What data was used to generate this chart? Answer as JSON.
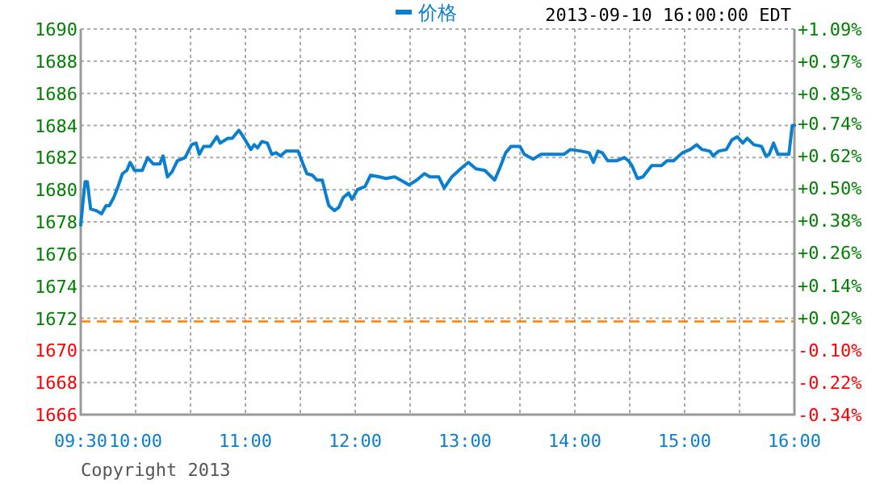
{
  "chart_data": {
    "type": "line",
    "subtitle": "2013-09-10 16:00:00 EDT",
    "annotations": [
      "Copyright 2013"
    ],
    "x": [
      9.5,
      9.52,
      9.54,
      9.56,
      9.59,
      9.64,
      9.69,
      9.73,
      9.76,
      9.8,
      9.84,
      9.88,
      9.92,
      9.95,
      9.99,
      10.06,
      10.11,
      10.16,
      10.22,
      10.25,
      10.29,
      10.33,
      10.38,
      10.45,
      10.51,
      10.55,
      10.58,
      10.62,
      10.68,
      10.74,
      10.77,
      10.84,
      10.88,
      10.94,
      10.98,
      11.05,
      11.08,
      11.11,
      11.15,
      11.2,
      11.24,
      11.28,
      11.32,
      11.37,
      11.43,
      11.48,
      11.53,
      11.56,
      11.61,
      11.65,
      11.7,
      11.74,
      11.76,
      11.81,
      11.85,
      11.89,
      11.94,
      11.97,
      12.02,
      12.09,
      12.14,
      12.22,
      12.28,
      12.36,
      12.44,
      12.49,
      12.56,
      12.63,
      12.68,
      12.76,
      12.81,
      12.88,
      12.96,
      13.03,
      13.1,
      13.18,
      13.27,
      13.32,
      13.37,
      13.42,
      13.5,
      13.54,
      13.62,
      13.69,
      13.76,
      13.84,
      13.9,
      13.96,
      14.06,
      14.13,
      14.17,
      14.21,
      14.25,
      14.3,
      14.38,
      14.45,
      14.49,
      14.52,
      14.57,
      14.62,
      14.7,
      14.79,
      14.84,
      14.9,
      14.98,
      15.05,
      15.11,
      15.16,
      15.23,
      15.26,
      15.31,
      15.38,
      15.43,
      15.48,
      15.53,
      15.57,
      15.63,
      15.7,
      15.74,
      15.77,
      15.81,
      15.85,
      15.95,
      15.98,
      16.0
    ],
    "series": [
      {
        "name": "价格",
        "color": "#0a7fd0",
        "values": [
          1677.8,
          1679.2,
          1680.5,
          1680.5,
          1678.8,
          1678.7,
          1678.5,
          1679.0,
          1679.0,
          1679.5,
          1680.2,
          1681.0,
          1681.2,
          1681.7,
          1681.2,
          1681.2,
          1682.0,
          1681.6,
          1681.6,
          1682.1,
          1680.8,
          1681.1,
          1681.8,
          1682.0,
          1682.8,
          1682.9,
          1682.2,
          1682.7,
          1682.7,
          1683.3,
          1682.9,
          1683.2,
          1683.2,
          1683.7,
          1683.3,
          1682.5,
          1682.8,
          1682.6,
          1683.0,
          1682.9,
          1682.2,
          1682.3,
          1682.1,
          1682.4,
          1682.4,
          1682.4,
          1681.5,
          1681.0,
          1680.9,
          1680.6,
          1680.6,
          1679.5,
          1679.0,
          1678.7,
          1678.9,
          1679.5,
          1679.8,
          1679.4,
          1680.0,
          1680.2,
          1680.9,
          1680.8,
          1680.7,
          1680.8,
          1680.5,
          1680.3,
          1680.6,
          1681.0,
          1680.8,
          1680.8,
          1680.1,
          1680.8,
          1681.3,
          1681.7,
          1681.3,
          1681.2,
          1680.6,
          1681.4,
          1682.3,
          1682.7,
          1682.7,
          1682.2,
          1681.9,
          1682.2,
          1682.2,
          1682.2,
          1682.2,
          1682.5,
          1682.4,
          1682.3,
          1681.7,
          1682.4,
          1682.3,
          1681.8,
          1681.8,
          1682.0,
          1681.8,
          1681.5,
          1680.7,
          1680.8,
          1681.5,
          1681.5,
          1681.8,
          1681.8,
          1682.3,
          1682.5,
          1682.8,
          1682.5,
          1682.4,
          1682.1,
          1682.4,
          1682.5,
          1683.1,
          1683.3,
          1682.9,
          1683.2,
          1682.8,
          1682.7,
          1682.1,
          1682.2,
          1682.9,
          1682.2,
          1682.2,
          1684.0,
          1684.0
        ]
      }
    ],
    "xlim": [
      9.5,
      16
    ],
    "xticks": [
      {
        "value": 9.5,
        "label": "09:30"
      },
      {
        "value": 10,
        "label": "10:00"
      },
      {
        "value": 10.5,
        "label": null
      },
      {
        "value": 11,
        "label": "11:00"
      },
      {
        "value": 11.5,
        "label": null
      },
      {
        "value": 12,
        "label": "12:00"
      },
      {
        "value": 12.5,
        "label": null
      },
      {
        "value": 13,
        "label": "13:00"
      },
      {
        "value": 13.5,
        "label": null
      },
      {
        "value": 14,
        "label": "14:00"
      },
      {
        "value": 14.5,
        "label": null
      },
      {
        "value": 15,
        "label": "15:00"
      },
      {
        "value": 15.5,
        "label": null
      },
      {
        "value": 16,
        "label": "16:00"
      }
    ],
    "ylim": [
      1666,
      1690
    ],
    "yticks": [
      1666,
      1668,
      1670,
      1672,
      1674,
      1676,
      1678,
      1680,
      1682,
      1684,
      1686,
      1688,
      1690
    ],
    "y2lim": [
      -0.34,
      1.09
    ],
    "y2ticks": [
      {
        "value": -0.34,
        "label": "-0.34%"
      },
      {
        "value": -0.22,
        "label": "-0.22%"
      },
      {
        "value": -0.1,
        "label": "-0.10%"
      },
      {
        "value": 0.02,
        "label": "+0.02%"
      },
      {
        "value": 0.14,
        "label": "+0.14%"
      },
      {
        "value": 0.26,
        "label": "+0.26%"
      },
      {
        "value": 0.38,
        "label": "+0.38%"
      },
      {
        "value": 0.5,
        "label": "+0.50%"
      },
      {
        "value": 0.62,
        "label": "+0.62%"
      },
      {
        "value": 0.74,
        "label": "+0.74%"
      },
      {
        "value": 0.85,
        "label": "+0.85%"
      },
      {
        "value": 0.97,
        "label": "+0.97%"
      },
      {
        "value": 1.09,
        "label": "+1.09%"
      }
    ],
    "ref_lines": [
      {
        "axis": "y",
        "value": 1671.8,
        "color": "#ff8000",
        "line_style": "dashed"
      }
    ],
    "grid": true,
    "legend": "top"
  }
}
